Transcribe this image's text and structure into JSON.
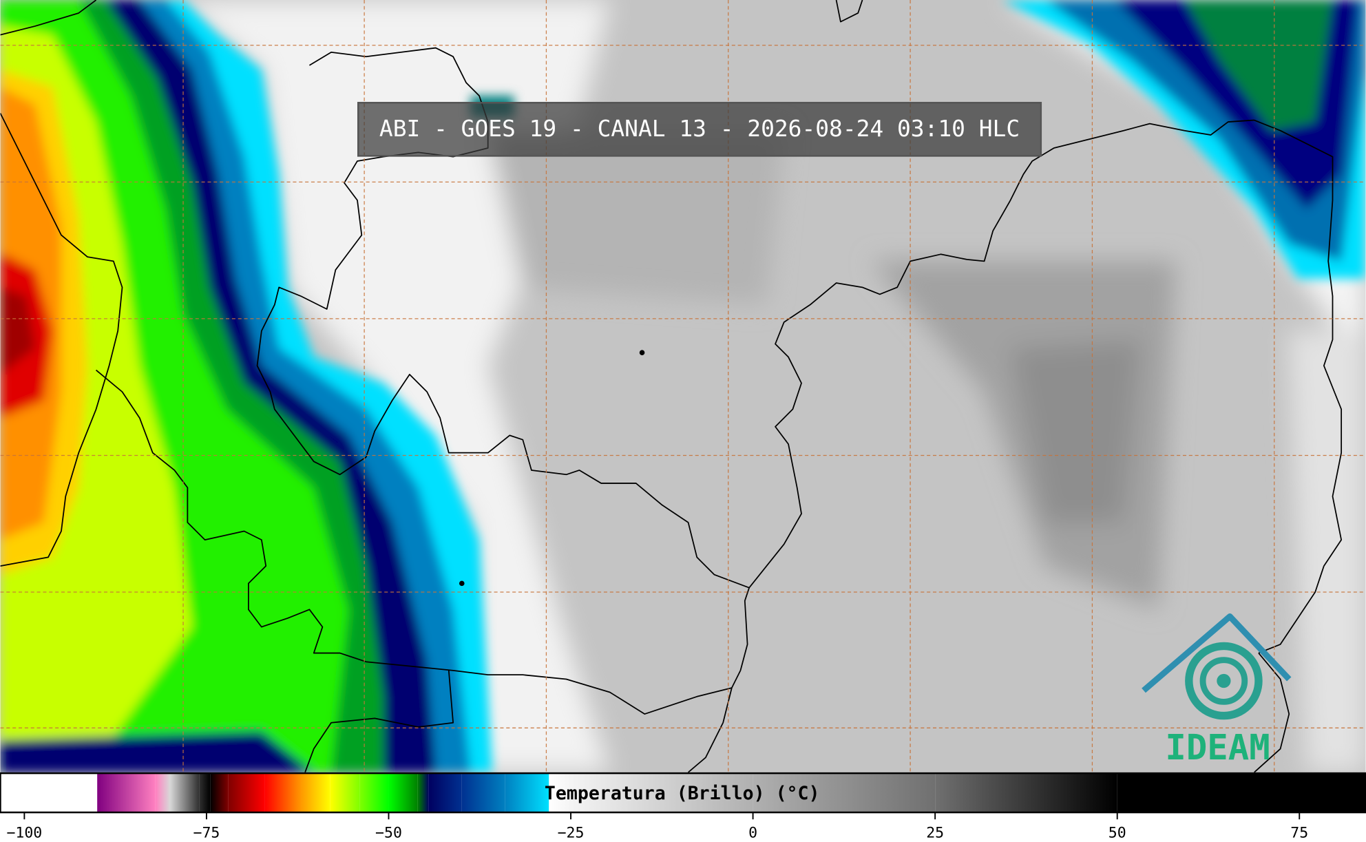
{
  "header": {
    "title": "ABI - GOES 19 - CANAL 13 - 2026-08-24 03:10 HLC"
  },
  "logo": {
    "text": "IDEAM"
  },
  "chart_data": {
    "type": "colorbar",
    "title": "Temperatura (Brillo) (°C)",
    "xlim": [
      -103.3,
      84.1
    ],
    "xticks": [
      {
        "value": -100,
        "label": "−100"
      },
      {
        "value": -75,
        "label": "−75"
      },
      {
        "value": -50,
        "label": "−50"
      },
      {
        "value": -25,
        "label": "−25"
      },
      0,
      25,
      50,
      75
    ],
    "colormap": [
      {
        "value": -103.3,
        "color": "#ffffff"
      },
      {
        "value": -90,
        "color": "#ffffff"
      },
      {
        "value": -90,
        "color": "#800080"
      },
      {
        "value": -82,
        "color": "#ff80c0"
      },
      {
        "value": -80,
        "color": "#d8d8d8"
      },
      {
        "value": -76,
        "color": "#303030"
      },
      {
        "value": -74.5,
        "color": "#000000"
      },
      {
        "value": -72,
        "color": "#800000"
      },
      {
        "value": -67,
        "color": "#ff0000"
      },
      {
        "value": -62,
        "color": "#ff9900"
      },
      {
        "value": -58,
        "color": "#ffff00"
      },
      {
        "value": -54,
        "color": "#80ff00"
      },
      {
        "value": -50,
        "color": "#00ff00"
      },
      {
        "value": -46,
        "color": "#008000"
      },
      {
        "value": -44.5,
        "color": "#000060"
      },
      {
        "value": -40,
        "color": "#003090"
      },
      {
        "value": -34,
        "color": "#0080c0"
      },
      {
        "value": -28,
        "color": "#00e0ff"
      },
      {
        "value": -28,
        "color": "#ffffff"
      },
      {
        "value": -25,
        "color": "#f4f4f4"
      },
      {
        "value": 0,
        "color": "#b0b0b0"
      },
      {
        "value": 25,
        "color": "#707070"
      },
      {
        "value": 50,
        "color": "#000000"
      },
      {
        "value": 84.1,
        "color": "#000000"
      }
    ]
  }
}
